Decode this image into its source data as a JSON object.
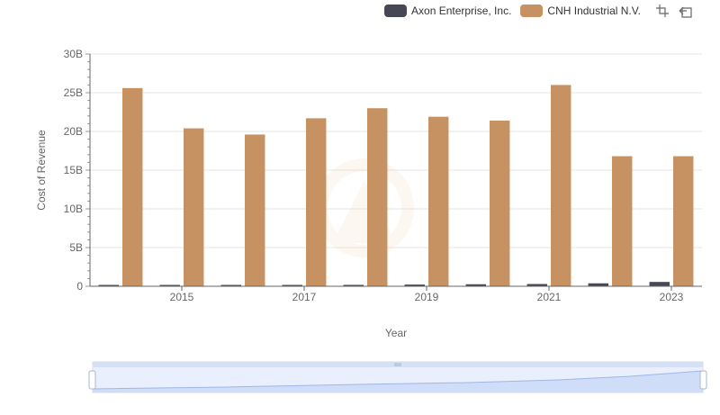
{
  "legend": {
    "items": [
      {
        "label": "Axon Enterprise, Inc.",
        "color": "#464856"
      },
      {
        "label": "CNH Industrial N.V.",
        "color": "#c79261"
      }
    ]
  },
  "toolbox": {
    "icons": [
      "zoom-icon",
      "restore-icon"
    ]
  },
  "chart_data": {
    "type": "bar",
    "xlabel": "Year",
    "ylabel": "Cost of Revenue",
    "categories": [
      "2014",
      "2015",
      "2016",
      "2017",
      "2018",
      "2019",
      "2020",
      "2021",
      "2022",
      "2023"
    ],
    "x_tick_labels": [
      "2015",
      "2017",
      "2019",
      "2021",
      "2023"
    ],
    "y_tick_labels": [
      "0",
      "5B",
      "10B",
      "15B",
      "20B",
      "25B",
      "30B"
    ],
    "ylim": [
      0,
      30000000000
    ],
    "grid": true,
    "legend_position": "top-right",
    "series": [
      {
        "name": "Axon Enterprise, Inc.",
        "color": "#464856",
        "values": [
          60000000,
          80000000,
          110000000,
          150000000,
          180000000,
          220000000,
          260000000,
          290000000,
          380000000,
          560000000
        ]
      },
      {
        "name": "CNH Industrial N.V.",
        "color": "#c79261",
        "values": [
          25600000000,
          20400000000,
          19600000000,
          21700000000,
          23000000000,
          21900000000,
          21400000000,
          26000000000,
          16800000000,
          16800000000
        ]
      }
    ]
  }
}
